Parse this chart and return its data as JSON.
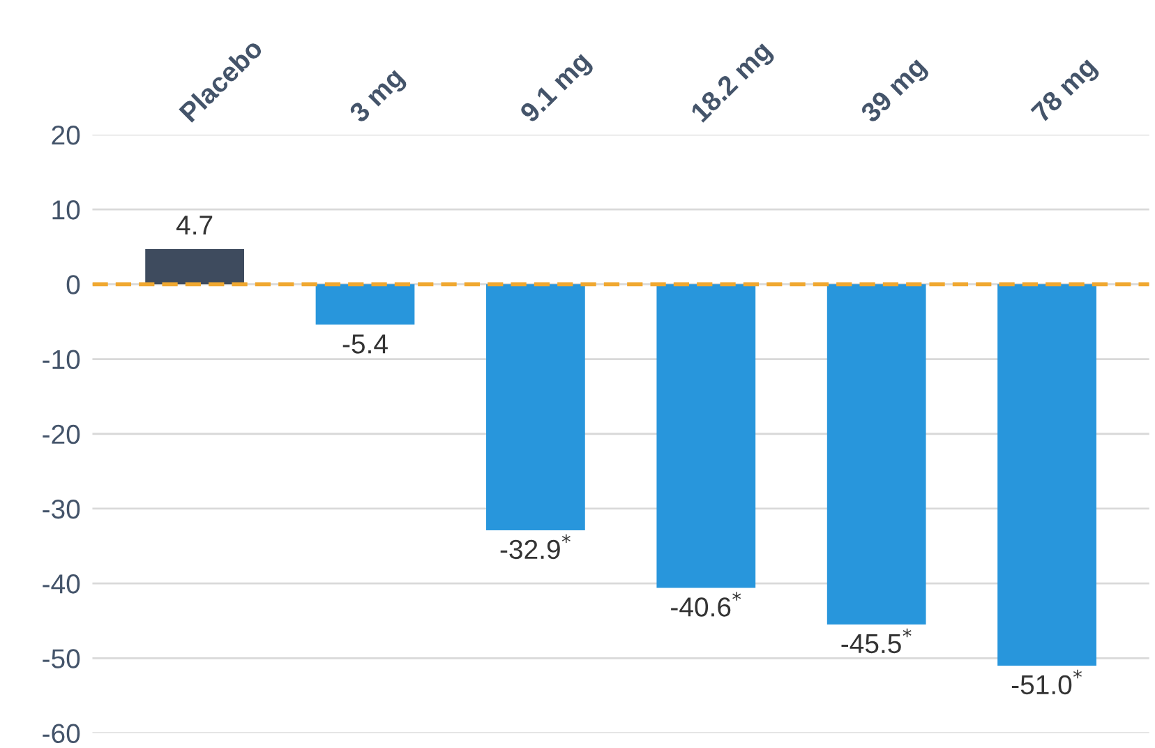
{
  "chart_data": {
    "type": "bar",
    "categories": [
      "Placebo",
      "3 mg",
      "9.1 mg",
      "18.2 mg",
      "39 mg",
      "78 mg"
    ],
    "values": [
      4.7,
      -5.4,
      -32.9,
      -40.6,
      -45.5,
      -51.0
    ],
    "colors": [
      "#3e4b5e",
      "#2896dc",
      "#2896dc",
      "#2896dc",
      "#2896dc",
      "#2896dc"
    ],
    "value_labels": [
      "4.7",
      "-5.4",
      "-32.9$^{*}$",
      "-40.6$^{*}$",
      "-45.5$^{*}$",
      "-51.0$^{*}$"
    ],
    "ylim": [
      -60,
      20
    ],
    "yticks": [
      -60,
      -50,
      -40,
      -30,
      -20,
      -10,
      0,
      10,
      20
    ],
    "grid": "y",
    "ref_lines": [
      {
        "axis": "y",
        "value": 0,
        "color": "#f0a830",
        "line_style": "dashed"
      }
    ]
  }
}
